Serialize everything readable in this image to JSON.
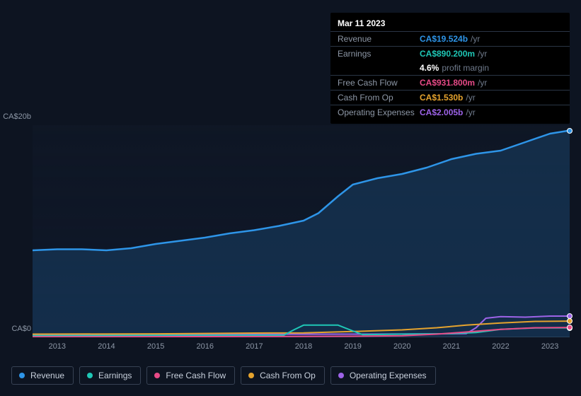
{
  "tooltip": {
    "date": "Mar 11 2023",
    "rows": [
      {
        "label": "Revenue",
        "value": "CA$19.524b",
        "suffix": "/yr",
        "color": "#2e95e8"
      },
      {
        "label": "Earnings",
        "value": "CA$890.200m",
        "suffix": "/yr",
        "color": "#1fc7b6"
      },
      {
        "label": "",
        "value": "4.6%",
        "suffix": "profit margin",
        "color": "#ffffff",
        "noborder": true
      },
      {
        "label": "Free Cash Flow",
        "value": "CA$931.800m",
        "suffix": "/yr",
        "color": "#e74a87"
      },
      {
        "label": "Cash From Op",
        "value": "CA$1.530b",
        "suffix": "/yr",
        "color": "#e5a32e"
      },
      {
        "label": "Operating Expenses",
        "value": "CA$2.005b",
        "suffix": "/yr",
        "color": "#9d63e8"
      }
    ]
  },
  "chart": {
    "type": "line-area",
    "background_color": "#0d1421",
    "plot_gradient_top": "rgba(30,45,70,0.1)",
    "plot_gradient_bottom": "rgba(15,25,45,0.6)",
    "ylim": [
      0,
      20
    ],
    "yticks": [
      {
        "v": 20,
        "label": "CA$20b"
      },
      {
        "v": 0,
        "label": "CA$0"
      }
    ],
    "x_start": 2012.5,
    "x_end": 2023.4,
    "xticks": [
      2013,
      2014,
      2015,
      2016,
      2017,
      2018,
      2019,
      2020,
      2021,
      2022,
      2023
    ],
    "axis_color": "#8d97a6",
    "series": [
      {
        "name": "Revenue",
        "color": "#2e95e8",
        "fill": "rgba(46,149,232,0.18)",
        "width": 2.5,
        "points": [
          [
            2012.5,
            8.2
          ],
          [
            2013,
            8.3
          ],
          [
            2013.5,
            8.3
          ],
          [
            2014,
            8.2
          ],
          [
            2014.5,
            8.4
          ],
          [
            2015,
            8.8
          ],
          [
            2015.5,
            9.1
          ],
          [
            2016,
            9.4
          ],
          [
            2016.5,
            9.8
          ],
          [
            2017,
            10.1
          ],
          [
            2017.5,
            10.5
          ],
          [
            2018,
            11.0
          ],
          [
            2018.3,
            11.7
          ],
          [
            2018.7,
            13.3
          ],
          [
            2019,
            14.4
          ],
          [
            2019.5,
            15.0
          ],
          [
            2020,
            15.4
          ],
          [
            2020.5,
            16.0
          ],
          [
            2021,
            16.8
          ],
          [
            2021.5,
            17.3
          ],
          [
            2022,
            17.6
          ],
          [
            2022.5,
            18.4
          ],
          [
            2023,
            19.2
          ],
          [
            2023.4,
            19.5
          ]
        ]
      },
      {
        "name": "Operating Expenses",
        "color": "#9d63e8",
        "width": 2,
        "points": [
          [
            2012.5,
            0.25
          ],
          [
            2016,
            0.28
          ],
          [
            2019,
            0.3
          ],
          [
            2020.5,
            0.32
          ],
          [
            2021.3,
            0.35
          ],
          [
            2021.5,
            0.9
          ],
          [
            2021.7,
            1.8
          ],
          [
            2022,
            1.95
          ],
          [
            2022.5,
            1.9
          ],
          [
            2023,
            2.0
          ],
          [
            2023.4,
            2.0
          ]
        ]
      },
      {
        "name": "Cash From Op",
        "color": "#e5a32e",
        "width": 2,
        "points": [
          [
            2012.5,
            0.3
          ],
          [
            2015,
            0.33
          ],
          [
            2017,
            0.4
          ],
          [
            2018,
            0.42
          ],
          [
            2019,
            0.55
          ],
          [
            2020,
            0.7
          ],
          [
            2020.7,
            0.9
          ],
          [
            2021.3,
            1.15
          ],
          [
            2022,
            1.35
          ],
          [
            2022.7,
            1.5
          ],
          [
            2023.4,
            1.53
          ]
        ]
      },
      {
        "name": "Earnings",
        "color": "#1fc7b6",
        "width": 2,
        "points": [
          [
            2012.5,
            0.15
          ],
          [
            2015,
            0.18
          ],
          [
            2017,
            0.2
          ],
          [
            2017.6,
            0.2
          ],
          [
            2017.8,
            0.7
          ],
          [
            2018.0,
            1.15
          ],
          [
            2018.7,
            1.15
          ],
          [
            2019.0,
            0.6
          ],
          [
            2019.2,
            0.25
          ],
          [
            2020,
            0.3
          ],
          [
            2021,
            0.35
          ],
          [
            2021.5,
            0.45
          ],
          [
            2022,
            0.75
          ],
          [
            2022.7,
            0.88
          ],
          [
            2023.4,
            0.89
          ]
        ]
      },
      {
        "name": "Free Cash Flow",
        "color": "#e74a87",
        "width": 2,
        "points": [
          [
            2012.5,
            0.05
          ],
          [
            2015,
            0.06
          ],
          [
            2017,
            0.07
          ],
          [
            2018,
            0.08
          ],
          [
            2019,
            0.1
          ],
          [
            2020,
            0.15
          ],
          [
            2020.7,
            0.3
          ],
          [
            2021.3,
            0.5
          ],
          [
            2022,
            0.75
          ],
          [
            2022.7,
            0.9
          ],
          [
            2023.4,
            0.93
          ]
        ]
      }
    ],
    "markers_at_x": 2023.4
  },
  "legend": {
    "items": [
      {
        "label": "Revenue",
        "color": "#2e95e8"
      },
      {
        "label": "Earnings",
        "color": "#1fc7b6"
      },
      {
        "label": "Free Cash Flow",
        "color": "#e74a87"
      },
      {
        "label": "Cash From Op",
        "color": "#e5a32e"
      },
      {
        "label": "Operating Expenses",
        "color": "#9d63e8"
      }
    ],
    "border_color": "#374254",
    "text_color": "#c8d0dc"
  }
}
